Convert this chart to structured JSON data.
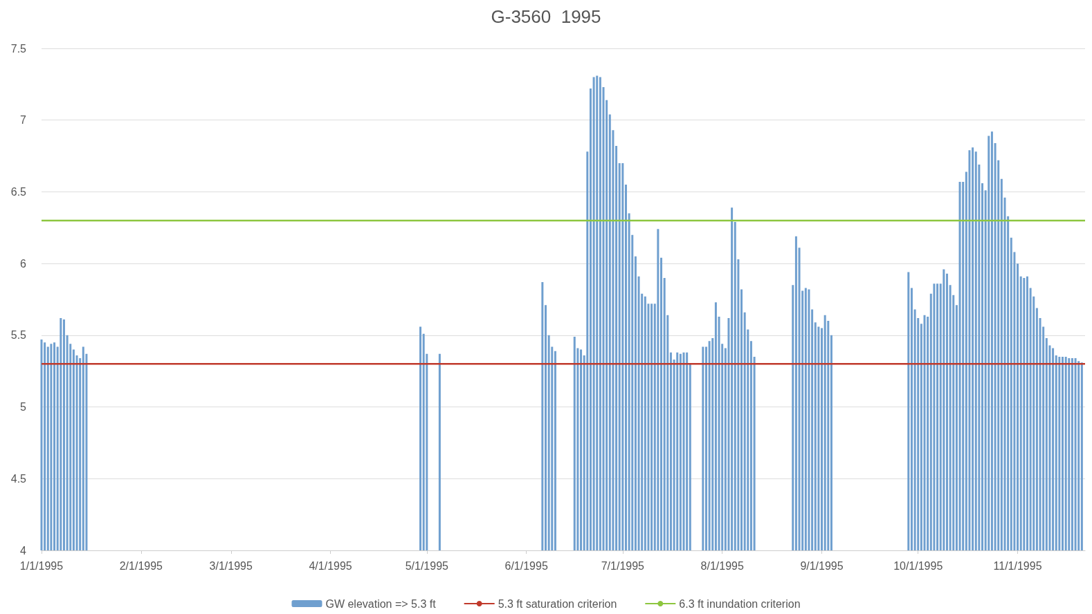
{
  "chart_data": {
    "type": "bar",
    "title": "G-3560  1995",
    "x": [
      "1995-01-01",
      "1995-01-02",
      "1995-01-03",
      "1995-01-04",
      "1995-01-05",
      "1995-01-06",
      "1995-01-07",
      "1995-01-08",
      "1995-01-09",
      "1995-01-10",
      "1995-01-11",
      "1995-01-12",
      "1995-01-13",
      "1995-01-14",
      "1995-01-15",
      "1995-04-29",
      "1995-04-30",
      "1995-05-01",
      "1995-05-05",
      "1995-06-06",
      "1995-06-07",
      "1995-06-08",
      "1995-06-09",
      "1995-06-10",
      "1995-06-16",
      "1995-06-17",
      "1995-06-18",
      "1995-06-19",
      "1995-06-20",
      "1995-06-21",
      "1995-06-22",
      "1995-06-23",
      "1995-06-24",
      "1995-06-25",
      "1995-06-26",
      "1995-06-27",
      "1995-06-28",
      "1995-06-29",
      "1995-06-30",
      "1995-07-01",
      "1995-07-02",
      "1995-07-03",
      "1995-07-04",
      "1995-07-05",
      "1995-07-06",
      "1995-07-07",
      "1995-07-08",
      "1995-07-09",
      "1995-07-10",
      "1995-07-11",
      "1995-07-12",
      "1995-07-13",
      "1995-07-14",
      "1995-07-15",
      "1995-07-16",
      "1995-07-17",
      "1995-07-18",
      "1995-07-19",
      "1995-07-20",
      "1995-07-21",
      "1995-07-22",
      "1995-07-26",
      "1995-07-27",
      "1995-07-28",
      "1995-07-29",
      "1995-07-30",
      "1995-07-31",
      "1995-08-01",
      "1995-08-02",
      "1995-08-03",
      "1995-08-04",
      "1995-08-05",
      "1995-08-06",
      "1995-08-07",
      "1995-08-08",
      "1995-08-09",
      "1995-08-10",
      "1995-08-11",
      "1995-08-23",
      "1995-08-24",
      "1995-08-25",
      "1995-08-26",
      "1995-08-27",
      "1995-08-28",
      "1995-08-29",
      "1995-08-30",
      "1995-08-31",
      "1995-09-01",
      "1995-09-02",
      "1995-09-03",
      "1995-09-04",
      "1995-09-28",
      "1995-09-29",
      "1995-09-30",
      "1995-10-01",
      "1995-10-02",
      "1995-10-03",
      "1995-10-04",
      "1995-10-05",
      "1995-10-06",
      "1995-10-07",
      "1995-10-08",
      "1995-10-09",
      "1995-10-10",
      "1995-10-11",
      "1995-10-12",
      "1995-10-13",
      "1995-10-14",
      "1995-10-15",
      "1995-10-16",
      "1995-10-17",
      "1995-10-18",
      "1995-10-19",
      "1995-10-20",
      "1995-10-21",
      "1995-10-22",
      "1995-10-23",
      "1995-10-24",
      "1995-10-25",
      "1995-10-26",
      "1995-10-27",
      "1995-10-28",
      "1995-10-29",
      "1995-10-30",
      "1995-10-31",
      "1995-11-01",
      "1995-11-02",
      "1995-11-03",
      "1995-11-04",
      "1995-11-05",
      "1995-11-06",
      "1995-11-07",
      "1995-11-08",
      "1995-11-09",
      "1995-11-10",
      "1995-11-11",
      "1995-11-12",
      "1995-11-13",
      "1995-11-14",
      "1995-11-15",
      "1995-11-16",
      "1995-11-17",
      "1995-11-18",
      "1995-11-19",
      "1995-11-20",
      "1995-11-21"
    ],
    "series": [
      {
        "name": "GW elevation => 5.3 ft",
        "color": "#6f9fcf",
        "values": [
          5.47,
          5.45,
          5.42,
          5.44,
          5.45,
          5.42,
          5.62,
          5.61,
          5.5,
          5.44,
          5.4,
          5.36,
          5.34,
          5.42,
          5.37,
          5.56,
          5.51,
          5.37,
          5.37,
          5.87,
          5.71,
          5.5,
          5.42,
          5.39,
          5.49,
          5.41,
          5.4,
          5.36,
          6.78,
          7.22,
          7.3,
          7.31,
          7.3,
          7.23,
          7.14,
          7.04,
          6.93,
          6.82,
          6.7,
          6.7,
          6.55,
          6.35,
          6.2,
          6.05,
          5.91,
          5.79,
          5.77,
          5.72,
          5.72,
          5.72,
          6.24,
          6.04,
          5.9,
          5.64,
          5.38,
          5.33,
          5.38,
          5.37,
          5.38,
          5.38,
          5.3,
          5.42,
          5.42,
          5.46,
          5.48,
          5.73,
          5.63,
          5.44,
          5.41,
          5.62,
          6.39,
          6.29,
          6.03,
          5.82,
          5.66,
          5.54,
          5.46,
          5.35,
          5.85,
          6.19,
          6.11,
          5.81,
          5.83,
          5.82,
          5.68,
          5.59,
          5.56,
          5.55,
          5.64,
          5.6,
          5.5,
          5.94,
          5.83,
          5.68,
          5.62,
          5.58,
          5.64,
          5.63,
          5.79,
          5.86,
          5.86,
          5.86,
          5.96,
          5.93,
          5.85,
          5.78,
          5.71,
          6.57,
          6.57,
          6.64,
          6.79,
          6.81,
          6.78,
          6.69,
          6.56,
          6.51,
          6.89,
          6.92,
          6.84,
          6.72,
          6.59,
          6.46,
          6.33,
          6.18,
          6.08,
          6.0,
          5.91,
          5.9,
          5.91,
          5.83,
          5.77,
          5.69,
          5.62,
          5.56,
          5.48,
          5.43,
          5.41,
          5.36,
          5.35,
          5.35,
          5.35,
          5.34,
          5.34,
          5.34,
          5.32,
          5.31
        ]
      }
    ],
    "xlim": [
      "1995-01-01",
      "1995-11-22"
    ],
    "xticks": [
      {
        "value": "1995-01-01",
        "label": "1/1/1995"
      },
      {
        "value": "1995-02-01",
        "label": "2/1/1995"
      },
      {
        "value": "1995-03-01",
        "label": "3/1/1995"
      },
      {
        "value": "1995-04-01",
        "label": "4/1/1995"
      },
      {
        "value": "1995-05-01",
        "label": "5/1/1995"
      },
      {
        "value": "1995-06-01",
        "label": "6/1/1995"
      },
      {
        "value": "1995-07-01",
        "label": "7/1/1995"
      },
      {
        "value": "1995-08-01",
        "label": "8/1/1995"
      },
      {
        "value": "1995-09-01",
        "label": "9/1/1995"
      },
      {
        "value": "1995-10-01",
        "label": "10/1/1995"
      },
      {
        "value": "1995-11-01",
        "label": "11/1/1995"
      }
    ],
    "ylim": [
      4,
      7.5
    ],
    "yticks": [
      4,
      4.5,
      5,
      5.5,
      6,
      6.5,
      7,
      7.5
    ],
    "ref_lines": [
      {
        "axis": "y",
        "value": 5.3,
        "label": "5.3 ft saturation criterion",
        "color": "#c0392b"
      },
      {
        "axis": "y",
        "value": 6.3,
        "label": "6.3 ft inundation criterion",
        "color": "#8dc63f"
      }
    ],
    "grid": "y",
    "legend": "bottom"
  }
}
